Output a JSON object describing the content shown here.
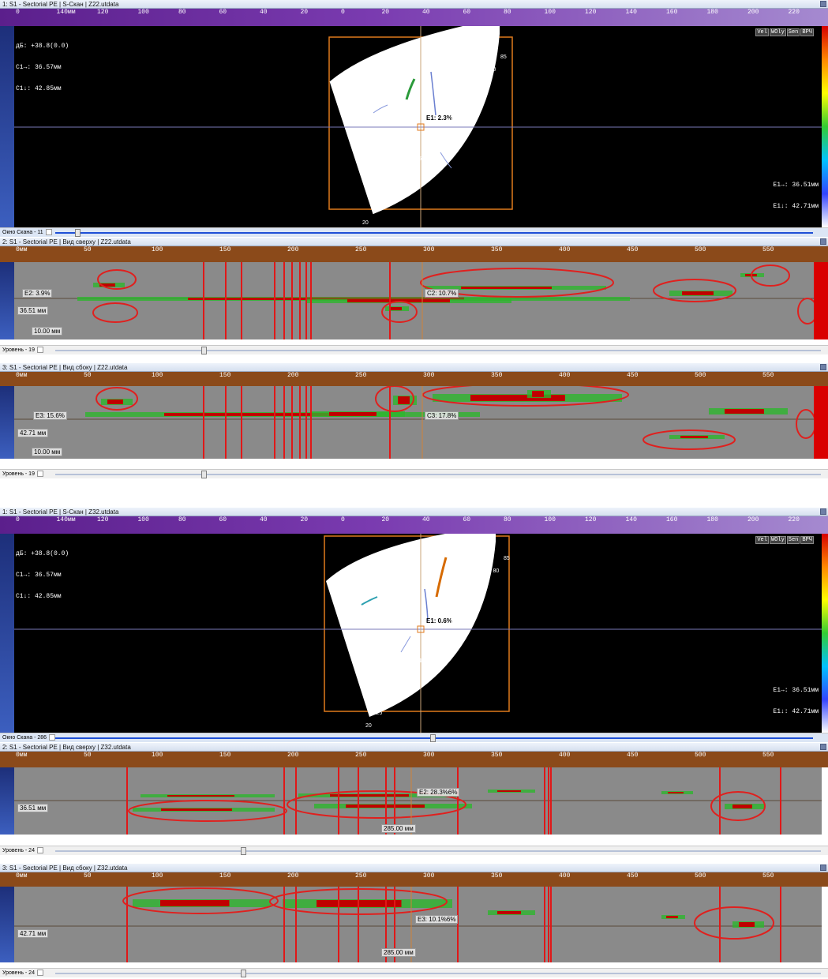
{
  "top": {
    "sscan": {
      "title": "1: S1 - Sectorial PE | S-Скан | Z22.utdata",
      "readouts": [
        "дБ: +38.8(0.0)",
        "C1→: 36.57мм",
        "C1↓: 42.85мм"
      ],
      "right_readouts": [
        "E1→: 36.51мм",
        "E1↓: 42.71мм"
      ],
      "toolbar": [
        "Vel",
        "WOly",
        "Sen",
        "ВРЧ"
      ],
      "cursor_label": "E1: 2.3%",
      "ruler_labels": [
        "0",
        "140мм",
        "120",
        "100",
        "80",
        "60",
        "40",
        "20",
        "0",
        "20",
        "40",
        "60",
        "80",
        "100",
        "120",
        "140",
        "160",
        "180",
        "200",
        "220"
      ],
      "angles": [
        "85",
        "80",
        "75",
        "70",
        "65",
        "60",
        "55",
        "50",
        "45",
        "40",
        "35",
        "30",
        "25",
        "20"
      ]
    },
    "scan_window": {
      "label": "Окно Скана - 11"
    },
    "topview": {
      "title": "2: S1 - Sectorial PE | Вид сверху | Z22.utdata",
      "ruler_labels": [
        "0мм",
        "50",
        "100",
        "150",
        "200",
        "250",
        "300",
        "350",
        "400",
        "450",
        "500",
        "550"
      ],
      "cursor_label": "E2: 3.9%",
      "cursor_label_right": "C2: 10.7%",
      "depth_label": "36.51 мм",
      "length_label": "10.00 мм",
      "level": "Уровень - 19"
    },
    "sideview": {
      "title": "3: S1 - Sectorial PE | Вид сбоку | Z22.utdata",
      "ruler_labels": [
        "0мм",
        "50",
        "100",
        "150",
        "200",
        "250",
        "300",
        "350",
        "400",
        "450",
        "500",
        "550"
      ],
      "cursor_label": "E3: 15.6%",
      "cursor_label_right": "C3: 17.8%",
      "depth_label": "42.71 мм",
      "length_label": "10.00 мм",
      "level": "Уровень - 19"
    }
  },
  "bottom": {
    "sscan": {
      "title": "1: S1 - Sectorial PE | S-Скан | Z32.utdata",
      "readouts": [
        "дБ: +38.8(0.0)",
        "C1→: 36.57мм",
        "C1↓: 42.85мм"
      ],
      "right_readouts": [
        "E1→: 36.51мм",
        "E1↓: 42.71мм"
      ],
      "toolbar": [
        "Vel",
        "WOly",
        "Sen",
        "ВРЧ"
      ],
      "cursor_label": "E1: 0.6%",
      "ruler_labels": [
        "0",
        "140мм",
        "120",
        "100",
        "80",
        "60",
        "40",
        "20",
        "0",
        "20",
        "40",
        "60",
        "80",
        "100",
        "120",
        "140",
        "160",
        "180",
        "200",
        "220"
      ],
      "angles": [
        "85",
        "80",
        "75",
        "70",
        "65",
        "60",
        "55",
        "50",
        "45",
        "40",
        "35",
        "30",
        "25",
        "20"
      ]
    },
    "scan_window": {
      "label": "Окно Скана - 286"
    },
    "topview": {
      "title": "2: S1 - Sectorial PE | Вид сверху | Z32.utdata",
      "ruler_labels": [
        "0мм",
        "50",
        "100",
        "150",
        "200",
        "250",
        "300",
        "350",
        "400",
        "450",
        "500",
        "550"
      ],
      "cursor_label": "E2: 28.3%6%",
      "depth_label": "36.51 мм",
      "length_label": "285.00 мм",
      "level": "Уровень - 24"
    },
    "sideview": {
      "title": "3: S1 - Sectorial PE | Вид сбоку | Z32.utdata",
      "ruler_labels": [
        "0мм",
        "50",
        "100",
        "150",
        "200",
        "250",
        "300",
        "350",
        "400",
        "450",
        "500",
        "550"
      ],
      "cursor_label": "E3: 10.1%6%",
      "depth_label": "42.71 мм",
      "length_label": "285.00 мм",
      "level": "Уровень - 24"
    }
  },
  "colors": {
    "annotation_red": "#e0201e",
    "annotation_green": "#2e9e3a",
    "gate_orange": "#e07a1c",
    "scan_gray": "#8a8a8a"
  }
}
